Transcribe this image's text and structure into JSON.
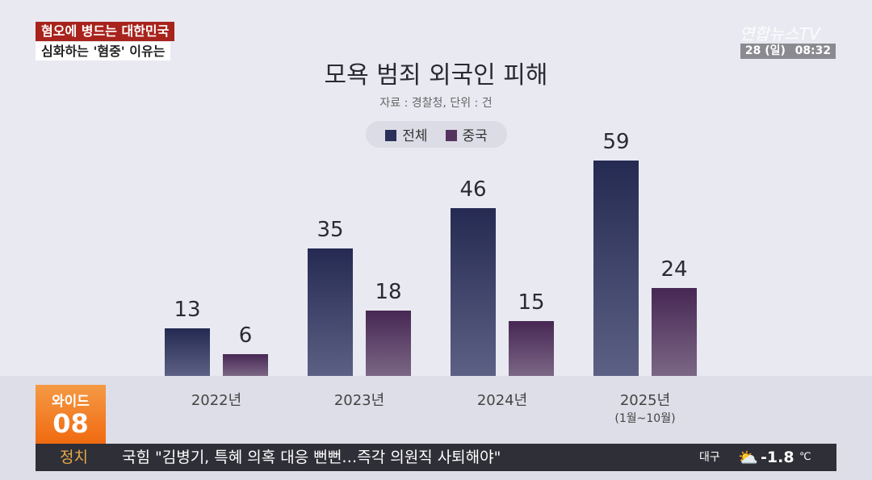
{
  "headline_tag": [
    "혐오에 병드는 대한민국",
    "심화하는 '혐중' 이유는"
  ],
  "logo": "연합뉴스TV",
  "clock": {
    "date": "28 (일)",
    "time": "08:32"
  },
  "chart_data": {
    "type": "bar",
    "title": "모욕 범죄 외국인 피해",
    "subtitle": "자료 : 경찰청, 단위 : 건",
    "categories": [
      "2022년",
      "2023년",
      "2024년",
      "2025년"
    ],
    "category_notes": [
      "",
      "",
      "",
      "(1월~10월)"
    ],
    "series": [
      {
        "name": "전체",
        "values": [
          13,
          35,
          46,
          59
        ],
        "color": "#2b3059"
      },
      {
        "name": "중국",
        "values": [
          6,
          18,
          15,
          24
        ],
        "color": "#54345f"
      }
    ],
    "ylim": [
      0,
      59
    ],
    "legend": "top-center"
  },
  "program": {
    "label": "와이드",
    "number": "08"
  },
  "ticker": {
    "category": "정치",
    "text": "국힘 \"김병기, 특혜 의혹 대응 뻔뻔…즉각 의원직 사퇴해야\"",
    "city": "대구",
    "temp": "-1.8",
    "unit": "℃"
  }
}
